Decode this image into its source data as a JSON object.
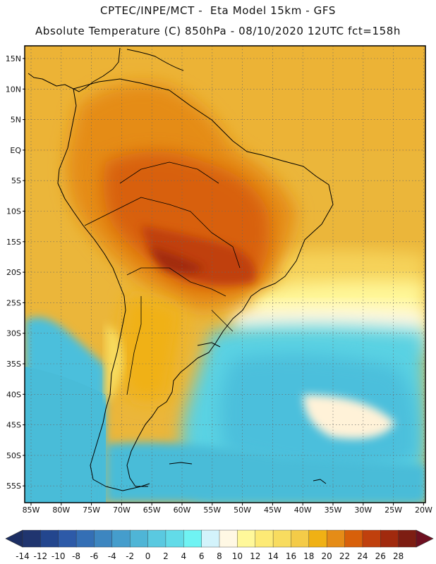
{
  "header": {
    "line1": "CPTEC/INPE/MCT -  Eta Model 15km - GFS",
    "line2": "Absolute Temperature (C) 850hPa - 08/10/2020 12UTC fct=158h"
  },
  "map": {
    "latitude_labels": [
      "15N",
      "10N",
      "5N",
      "EQ",
      "5S",
      "10S",
      "15S",
      "20S",
      "25S",
      "30S",
      "35S",
      "40S",
      "45S",
      "50S",
      "55S"
    ],
    "longitude_labels": [
      "85W",
      "80W",
      "75W",
      "70W",
      "65W",
      "60W",
      "55W",
      "50W",
      "45W",
      "40W",
      "35W",
      "30W",
      "25W",
      "20W"
    ]
  },
  "colorbar": {
    "ticks": [
      "-14",
      "-12",
      "-10",
      "-8",
      "-6",
      "-4",
      "-2",
      "0",
      "2",
      "4",
      "6",
      "8",
      "10",
      "12",
      "14",
      "16",
      "18",
      "20",
      "22",
      "24",
      "26",
      "28"
    ],
    "colors": [
      "#20356f",
      "#23468e",
      "#2d5aa8",
      "#346fb5",
      "#3d86c0",
      "#459dcc",
      "#4fb5d6",
      "#5ac9e0",
      "#62dbe8",
      "#6ff3f3",
      "#d3f3fb",
      "#fff8e4",
      "#fff89a",
      "#fdea75",
      "#f8dc5f",
      "#f4cb48",
      "#f0b114",
      "#e58c17",
      "#d8600a",
      "#c0400d",
      "#a12a0e",
      "#7d1d12"
    ],
    "under_color": "#1c2e63",
    "over_color": "#6e1020"
  },
  "colors": {
    "ocean_band_tropical": "#ebb63a",
    "land_hot": "#c45a17",
    "ocean_cold": "#4bbfdc",
    "coastline": "#000000"
  }
}
